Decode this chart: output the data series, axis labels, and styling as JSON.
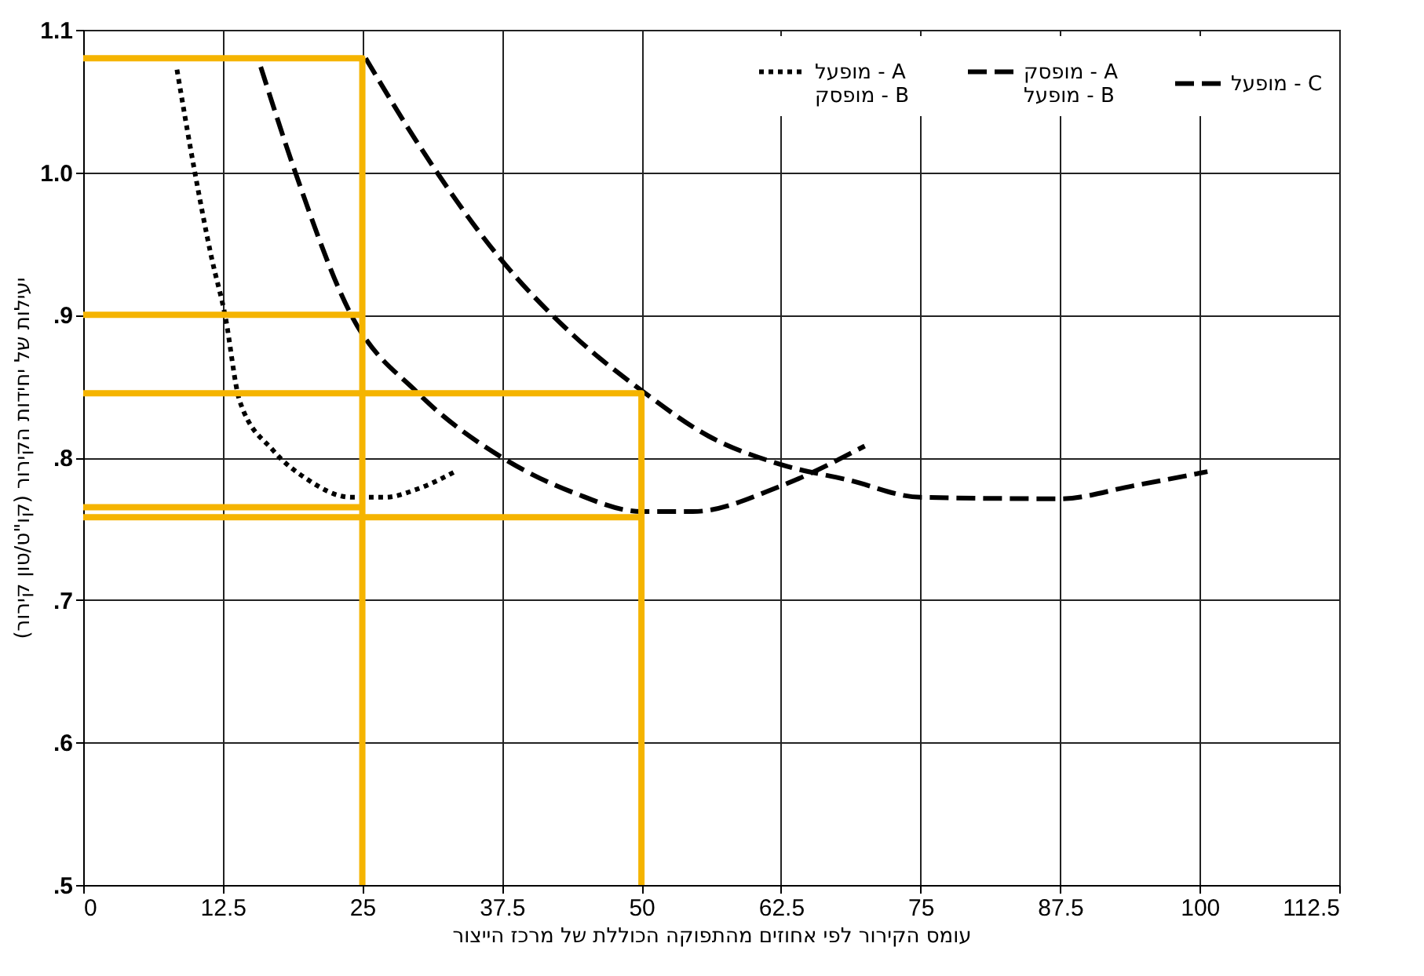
{
  "chart_data": {
    "type": "line",
    "xlabel": "עומס הקירור לפי אחוזים מהתפוקה הכוללת של מרכז הייצור",
    "ylabel": "יעילות של יחידות הקירור (קו\"ט/טון קירור)",
    "xlim": [
      0,
      112.5
    ],
    "xticks": [
      0,
      12.5,
      25,
      37.5,
      50,
      62.5,
      75,
      87.5,
      100,
      112.5
    ],
    "ylim": [
      0.5,
      1.1
    ],
    "yticks": [
      {
        "value": 0.5,
        "label": ".5"
      },
      {
        "value": 0.6,
        "label": ".6"
      },
      {
        "value": 0.7,
        "label": ".7"
      },
      {
        "value": 0.8,
        "label": ".8"
      },
      {
        "value": 0.9,
        "label": ".9"
      },
      {
        "value": 1.0,
        "label": "1.0"
      },
      {
        "value": 1.1,
        "label": "1.1"
      }
    ],
    "grid": true,
    "legend": "top right",
    "series": [
      {
        "name": "מופעל - A\nמופסק - B",
        "color": "#000000",
        "line_style": "dotted",
        "x": [
          8.4,
          10,
          11.5,
          12.7,
          14,
          17,
          20,
          24,
          27,
          30,
          33.3
        ],
        "values": [
          1.072,
          1.0,
          0.94,
          0.9,
          0.84,
          0.805,
          0.785,
          0.772,
          0.772,
          0.778,
          0.79
        ]
      },
      {
        "name": "מופסק - A\nמופעל - B",
        "color": "#000000",
        "line_style": "dashed",
        "x": [
          15.9,
          19,
          24,
          30,
          37.5,
          44,
          50,
          54.6,
          62.5,
          70
        ],
        "values": [
          1.074,
          1.0,
          0.9,
          0.845,
          0.8,
          0.775,
          0.762,
          0.762,
          0.78,
          0.808
        ]
      },
      {
        "name": "מופעל - C",
        "color": "#000000",
        "line_style": "dashed",
        "x": [
          25.3,
          30,
          37.3,
          44,
          50,
          56,
          62.5,
          68.6,
          75,
          87.5,
          94,
          100.7
        ],
        "values": [
          1.08,
          1.02,
          0.94,
          0.885,
          0.847,
          0.815,
          0.795,
          0.784,
          0.772,
          0.771,
          0.78,
          0.79
        ]
      },
      {
        "color": "#f5b400",
        "line_style": "solid",
        "x": [
          25,
          25,
          0
        ],
        "values": [
          0.5,
          1.08,
          1.08
        ]
      },
      {
        "color": "#f5b400",
        "line_style": "solid",
        "x": [
          25,
          0
        ],
        "values": [
          0.9,
          0.9
        ]
      },
      {
        "color": "#f5b400",
        "line_style": "solid",
        "x": [
          25,
          0
        ],
        "values": [
          0.765,
          0.765
        ]
      },
      {
        "color": "#f5b400",
        "line_style": "solid",
        "x": [
          50,
          50,
          0
        ],
        "values": [
          0.5,
          0.845,
          0.845
        ]
      },
      {
        "color": "#f5b400",
        "line_style": "solid",
        "x": [
          50,
          0
        ],
        "values": [
          0.758,
          0.758
        ]
      }
    ]
  }
}
